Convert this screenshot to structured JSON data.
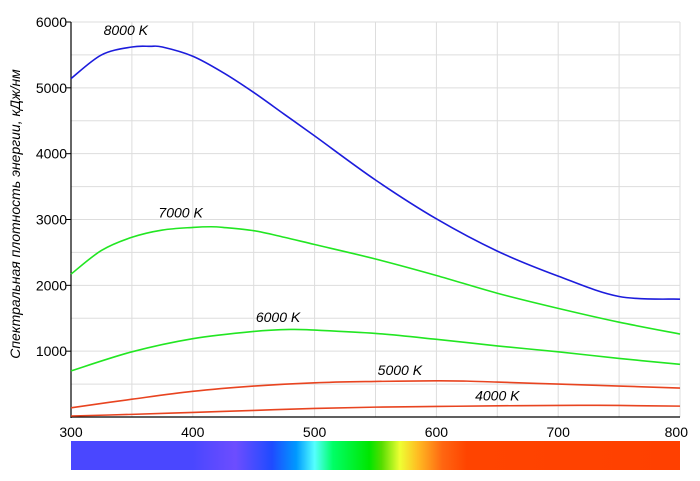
{
  "chart_data": {
    "type": "line",
    "title": "",
    "xlabel": "",
    "ylabel": "Спектральная плотность энергии, кДж/нм",
    "xlim": [
      300,
      800
    ],
    "ylim": [
      0,
      6000
    ],
    "grid": true,
    "x_ticks": [
      "300",
      "400",
      "500",
      "600",
      "700",
      "800"
    ],
    "y_ticks": [
      "1000",
      "2000",
      "3000",
      "4000",
      "5000",
      "6000"
    ],
    "spectrum_bar": true,
    "series": [
      {
        "name": "8000 K",
        "color": "#1c1cdc",
        "x": [
          300,
          325,
          350,
          365,
          375,
          400,
          425,
          450,
          475,
          500,
          550,
          600,
          650,
          700,
          750,
          800
        ],
        "y": [
          5140,
          5500,
          5620,
          5630,
          5620,
          5480,
          5230,
          4930,
          4600,
          4270,
          3600,
          3010,
          2520,
          2140,
          1830,
          1790
        ]
      },
      {
        "name": "7000 K",
        "color": "#22e622",
        "x": [
          300,
          325,
          350,
          375,
          400,
          415,
          425,
          450,
          475,
          500,
          550,
          600,
          650,
          700,
          750,
          800
        ],
        "y": [
          2170,
          2530,
          2730,
          2840,
          2880,
          2890,
          2880,
          2830,
          2730,
          2620,
          2400,
          2150,
          1880,
          1650,
          1440,
          1260
        ]
      },
      {
        "name": "6000 K",
        "color": "#22e622",
        "x": [
          300,
          350,
          400,
          450,
          480,
          500,
          550,
          600,
          650,
          700,
          750,
          800
        ],
        "y": [
          700,
          990,
          1190,
          1300,
          1330,
          1320,
          1270,
          1180,
          1080,
          990,
          890,
          800
        ]
      },
      {
        "name": "5000 K",
        "color": "#e84420",
        "x": [
          300,
          350,
          400,
          450,
          500,
          550,
          600,
          625,
          650,
          700,
          750,
          800
        ],
        "y": [
          140,
          270,
          390,
          470,
          520,
          540,
          550,
          545,
          530,
          500,
          470,
          440
        ]
      },
      {
        "name": "4000 K",
        "color": "#e84420",
        "x": [
          300,
          350,
          400,
          450,
          500,
          550,
          600,
          650,
          700,
          725,
          750,
          800
        ],
        "y": [
          15,
          40,
          70,
          100,
          130,
          150,
          160,
          170,
          175,
          178,
          175,
          165
        ]
      }
    ],
    "labels": [
      {
        "text": "8000 K",
        "x": 345,
        "y": 5800
      },
      {
        "text": "7000 K",
        "x": 390,
        "y": 3030
      },
      {
        "text": "6000 K",
        "x": 470,
        "y": 1440
      },
      {
        "text": "5000 K",
        "x": 570,
        "y": 640
      },
      {
        "text": "4000 K",
        "x": 650,
        "y": 250
      }
    ]
  }
}
